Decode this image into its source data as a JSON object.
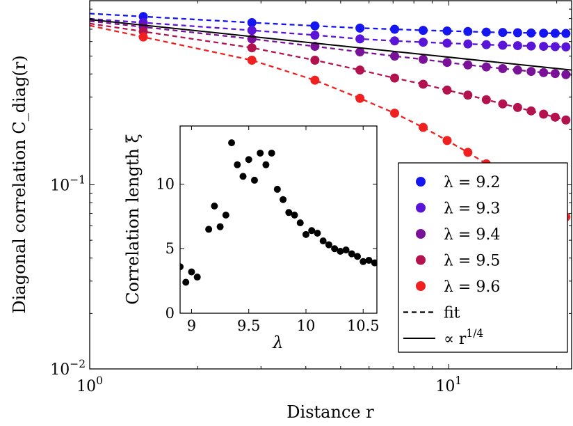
{
  "chart_data": [
    {
      "type": "scatter",
      "xlabel": "Distance r",
      "ylabel": "Diagonal correlation C_diag(r)",
      "xscale": "log",
      "yscale": "log",
      "xlim": [
        1,
        22
      ],
      "ylim": [
        0.01,
        1.0
      ],
      "x_ticks": [
        {
          "value": 1,
          "base": "10",
          "exp": "0"
        },
        {
          "value": 10,
          "base": "10",
          "exp": "1"
        }
      ],
      "y_ticks": [
        {
          "value": 0.01,
          "base": "10",
          "exp": "−2"
        },
        {
          "value": 0.1,
          "base": "10",
          "exp": "−1"
        }
      ],
      "x": [
        1.41,
        2.83,
        4.24,
        5.66,
        7.07,
        8.49,
        9.9,
        11.31,
        12.73,
        14.14,
        15.56,
        16.97,
        18.38,
        19.8,
        21.21
      ],
      "series": [
        {
          "name": "λ = 9.2",
          "color": "#1515f0",
          "values": [
            0.82,
            0.76,
            0.73,
            0.71,
            0.7,
            0.69,
            0.685,
            0.68,
            0.675,
            0.672,
            0.67,
            0.668,
            0.666,
            0.665,
            0.664
          ]
        },
        {
          "name": "λ = 9.3",
          "color": "#5a14d8",
          "values": [
            0.76,
            0.69,
            0.65,
            0.62,
            0.605,
            0.595,
            0.588,
            0.582,
            0.577,
            0.573,
            0.57,
            0.567,
            0.565,
            0.563,
            0.561
          ]
        },
        {
          "name": "λ = 9.4",
          "color": "#7a1299",
          "values": [
            0.72,
            0.62,
            0.565,
            0.527,
            0.5,
            0.48,
            0.462,
            0.448,
            0.437,
            0.428,
            0.42,
            0.413,
            0.407,
            0.402,
            0.397
          ]
        },
        {
          "name": "λ = 9.5",
          "color": "#b3124f",
          "values": [
            0.68,
            0.555,
            0.475,
            0.42,
            0.38,
            0.352,
            0.327,
            0.307,
            0.29,
            0.275,
            0.263,
            0.252,
            0.242,
            0.233,
            0.225
          ]
        },
        {
          "name": "λ = 9.6",
          "color": "#f02020",
          "values": [
            0.635,
            0.475,
            0.37,
            0.295,
            0.245,
            0.205,
            0.174,
            0.15,
            0.13,
            0.114,
            0.101,
            0.091,
            0.082,
            0.074,
            0.067
          ]
        }
      ],
      "reference_line": {
        "label": "∝ r^(1/4)",
        "label_base": "∝ r",
        "label_exp": "1/4",
        "color": "#000000",
        "from": [
          1,
          0.79
        ],
        "to": [
          22,
          0.42
        ]
      },
      "fit_label": "fit",
      "legend": "right",
      "grid": false
    },
    {
      "type": "scatter",
      "xlabel": "λ",
      "ylabel": "Correlation length ξ",
      "xlim": [
        8.9,
        10.62
      ],
      "ylim": [
        0,
        14.5
      ],
      "x_ticks": [
        "9",
        "9.5",
        "10",
        "10.5"
      ],
      "y_ticks": [
        "0",
        "5",
        "10"
      ],
      "color": "#000000",
      "points": [
        [
          8.9,
          3.6
        ],
        [
          8.95,
          2.4
        ],
        [
          9.0,
          3.2
        ],
        [
          9.05,
          2.8
        ],
        [
          9.15,
          6.5
        ],
        [
          9.2,
          8.3
        ],
        [
          9.25,
          6.7
        ],
        [
          9.3,
          7.6
        ],
        [
          9.35,
          13.2
        ],
        [
          9.4,
          11.5
        ],
        [
          9.45,
          10.6
        ],
        [
          9.5,
          11.9
        ],
        [
          9.55,
          10.3
        ],
        [
          9.6,
          12.4
        ],
        [
          9.65,
          11.5
        ],
        [
          9.7,
          12.4
        ],
        [
          9.75,
          9.6
        ],
        [
          9.8,
          8.8
        ],
        [
          9.85,
          7.8
        ],
        [
          9.9,
          7.6
        ],
        [
          9.95,
          7.0
        ],
        [
          10.0,
          6.1
        ],
        [
          10.05,
          6.4
        ],
        [
          10.1,
          6.2
        ],
        [
          10.15,
          5.6
        ],
        [
          10.2,
          5.3
        ],
        [
          10.25,
          5.0
        ],
        [
          10.3,
          4.8
        ],
        [
          10.35,
          4.9
        ],
        [
          10.4,
          4.6
        ],
        [
          10.45,
          4.4
        ],
        [
          10.5,
          4.0
        ],
        [
          10.55,
          4.1
        ],
        [
          10.6,
          3.9
        ]
      ]
    }
  ]
}
